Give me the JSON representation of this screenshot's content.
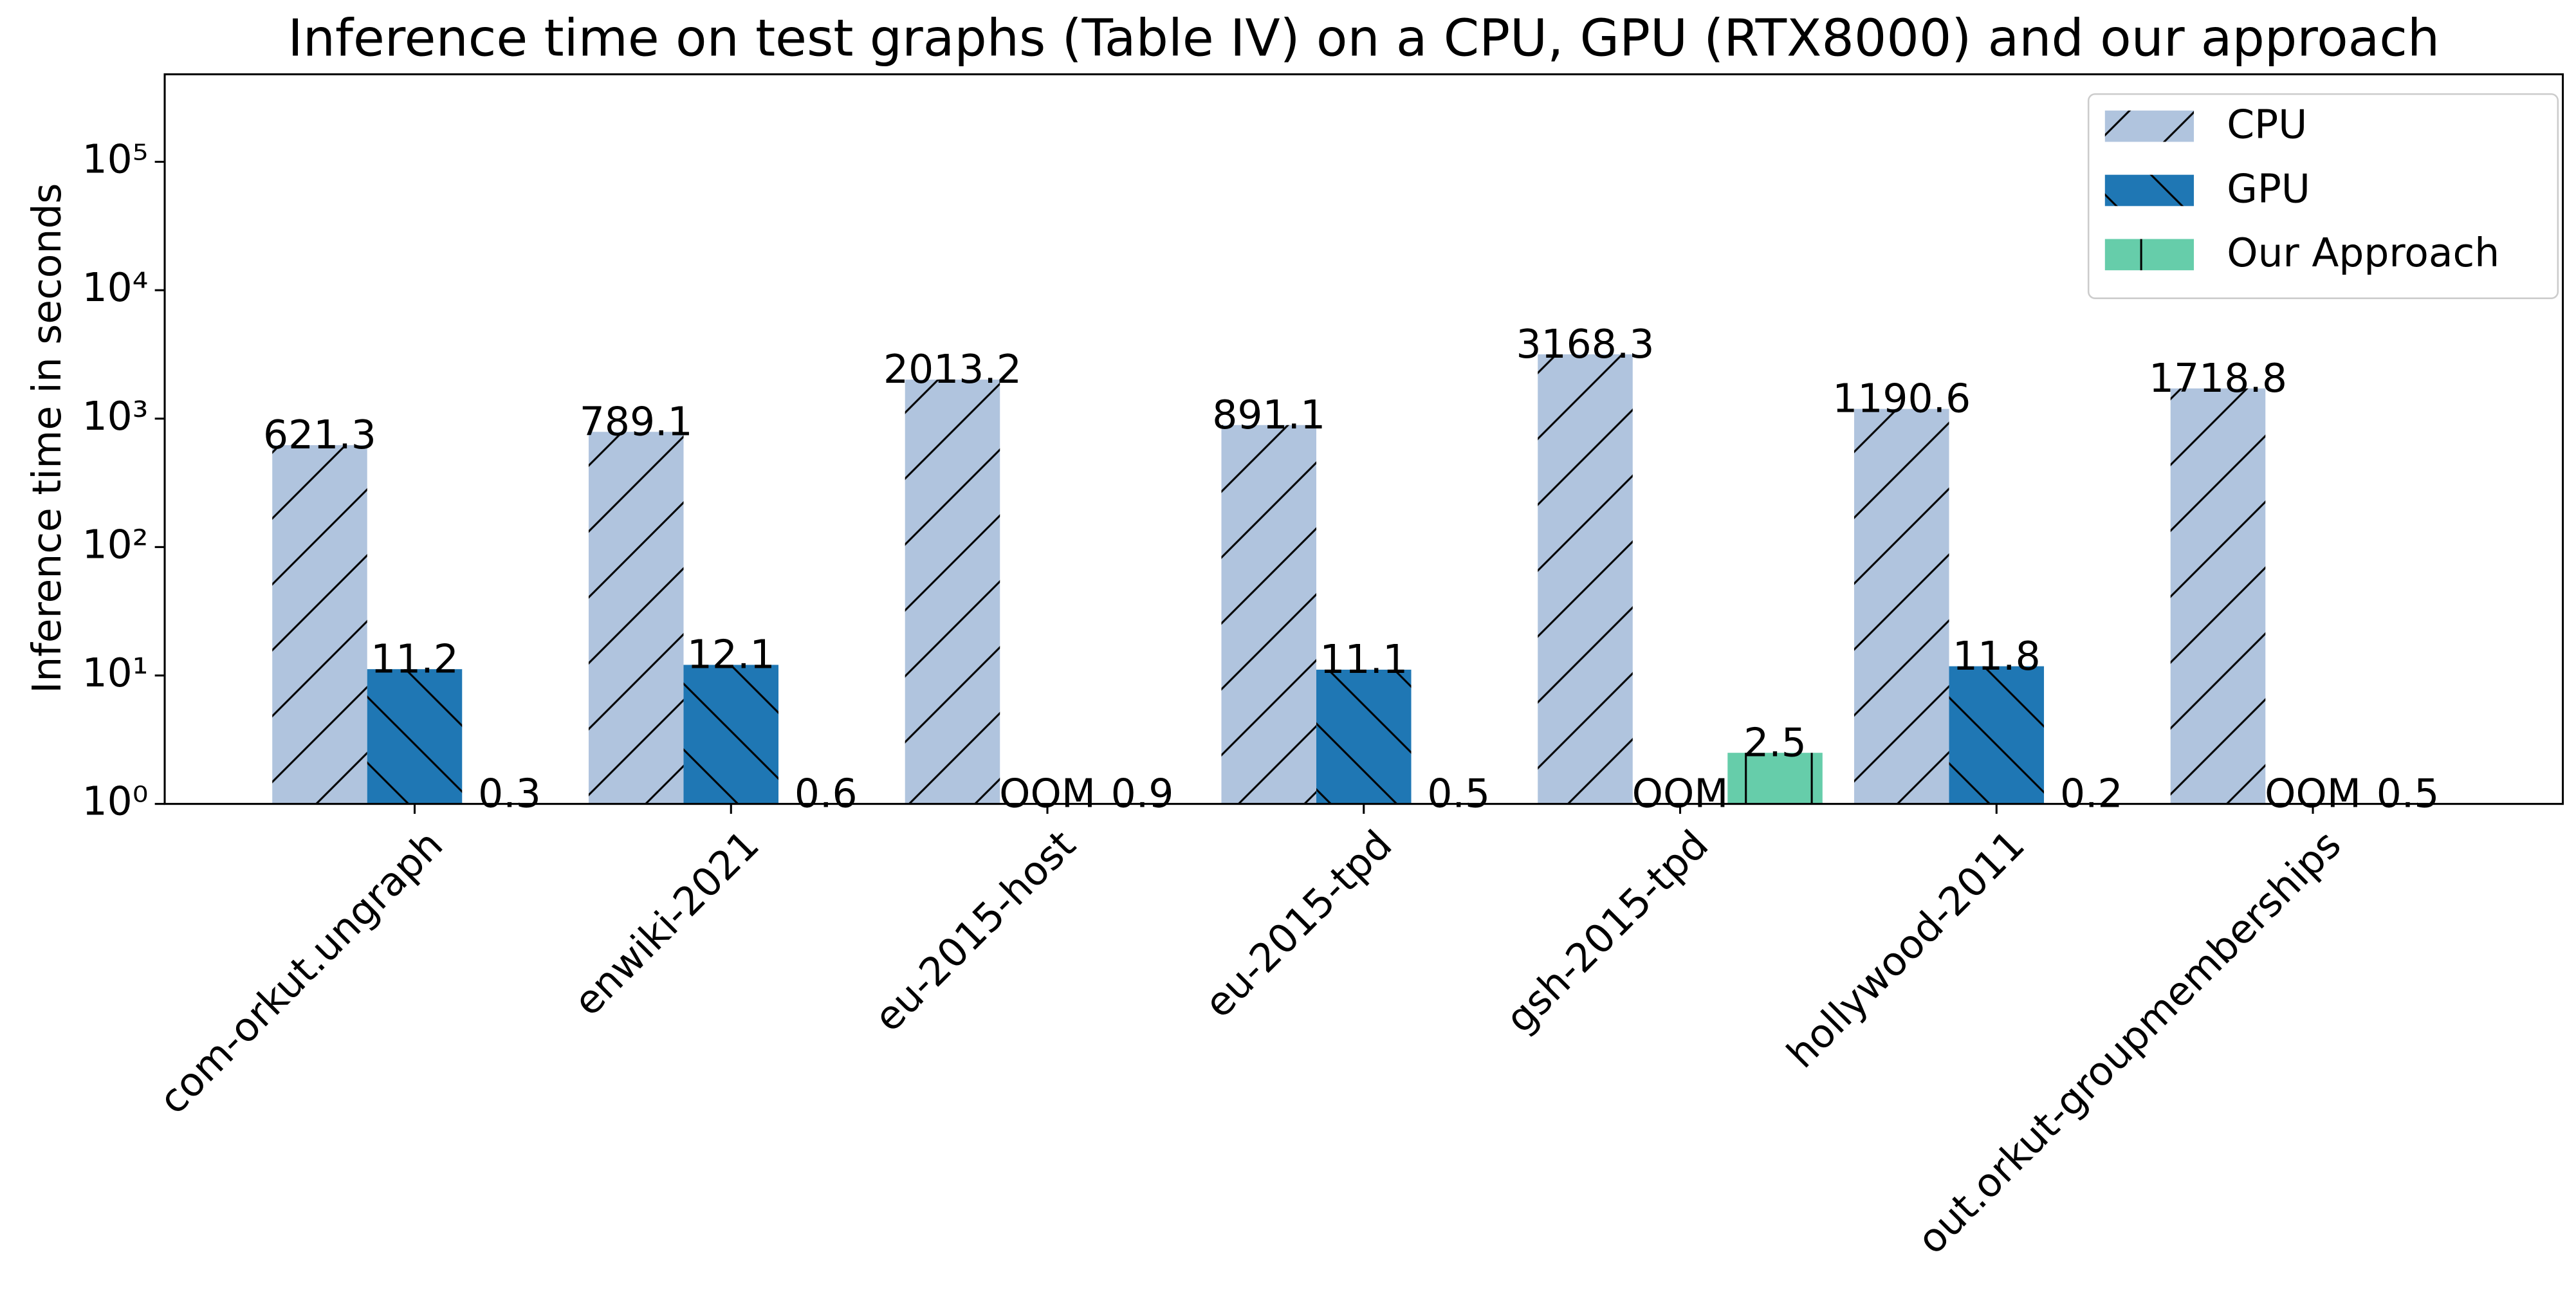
{
  "chart_data": {
    "type": "bar",
    "title": "Inference time on test graphs (Table IV) on a CPU, GPU (RTX8000) and our approach",
    "y_label": "Inference time in seconds",
    "categories": [
      "com-orkut.ungraph",
      "enwiki-2021",
      "eu-2015-host",
      "eu-2015-tpd",
      "gsh-2015-tpd",
      "hollywood-2011",
      "out.orkut-groupmemberships"
    ],
    "series": [
      {
        "name": "CPU",
        "color": "#b0c4de",
        "hatch": "/",
        "values": [
          621.3,
          789.1,
          2013.2,
          891.1,
          3168.3,
          1190.6,
          1718.8
        ]
      },
      {
        "name": "GPU",
        "color": "#1f77b4",
        "hatch": "\\",
        "values": [
          11.2,
          12.1,
          null,
          11.1,
          null,
          11.8,
          null
        ],
        "value_labels": [
          "11.2",
          "12.1",
          "OOM",
          "11.1",
          "OOM",
          "11.8",
          "OOM"
        ]
      },
      {
        "name": "Our Approach",
        "color": "#66cdaa",
        "hatch": "|",
        "values": [
          0.3,
          0.6,
          0.9,
          0.5,
          2.5,
          0.2,
          0.5
        ]
      }
    ],
    "log_scale": true,
    "ylim": [
      1,
      480000
    ],
    "yticks": [
      {
        "value": 1,
        "label": "10⁰"
      },
      {
        "value": 10,
        "label": "10¹"
      },
      {
        "value": 100,
        "label": "10²"
      },
      {
        "value": 1000,
        "label": "10³"
      },
      {
        "value": 10000,
        "label": "10⁴"
      },
      {
        "value": 100000,
        "label": "10⁵"
      }
    ],
    "legend": "upper right"
  }
}
